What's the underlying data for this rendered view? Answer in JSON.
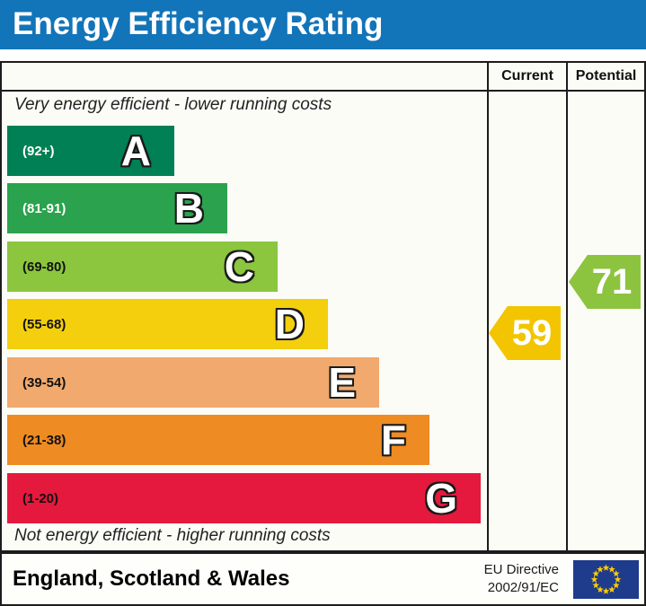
{
  "title": "Energy Efficiency Rating",
  "table": {
    "columns": {
      "current": "Current",
      "potential": "Potential"
    }
  },
  "notes": {
    "top": "Very energy efficient - lower running costs",
    "bottom": "Not energy efficient - higher running costs"
  },
  "bands": [
    {
      "letter": "A",
      "range": "(92+)",
      "color": "#008054",
      "label_color": "#ffffff"
    },
    {
      "letter": "B",
      "range": "(81-91)",
      "color": "#2ba24d",
      "label_color": "#ffffff"
    },
    {
      "letter": "C",
      "range": "(69-80)",
      "color": "#8bc63e",
      "label_color": "#111111"
    },
    {
      "letter": "D",
      "range": "(55-68)",
      "color": "#f4cf0d",
      "label_color": "#111111"
    },
    {
      "letter": "E",
      "range": "(39-54)",
      "color": "#f1a96d",
      "label_color": "#111111"
    },
    {
      "letter": "F",
      "range": "(21-38)",
      "color": "#ee8b23",
      "label_color": "#111111"
    },
    {
      "letter": "G",
      "range": "(1-20)",
      "color": "#e5193d",
      "label_color": "#111111"
    }
  ],
  "ratings": {
    "current": {
      "value": "59",
      "band": "D",
      "color": "#f2c500"
    },
    "potential": {
      "value": "71",
      "band": "C",
      "color": "#8cc43f"
    }
  },
  "footer": {
    "region": "England, Scotland & Wales",
    "directive_line1": "EU Directive",
    "directive_line2": "2002/91/EC"
  },
  "flag": {
    "background": "#1f3b8c",
    "star_color": "#ffcc00",
    "stars": 12
  },
  "colors": {
    "banner": "#1274b9",
    "border": "#1c1c1c",
    "chart_bg": "#fcfcf7"
  },
  "chart_data": {
    "type": "bar",
    "title": "Energy Efficiency Rating",
    "categories": [
      "A",
      "B",
      "C",
      "D",
      "E",
      "F",
      "G"
    ],
    "band_ranges": [
      "92+",
      "81-91",
      "69-80",
      "55-68",
      "39-54",
      "21-38",
      "1-20"
    ],
    "band_colors": [
      "#008054",
      "#2ba24d",
      "#8bc63e",
      "#f4cf0d",
      "#f1a96d",
      "#ee8b23",
      "#e5193d"
    ],
    "series": [
      {
        "name": "Current",
        "value": 59,
        "band": "D",
        "color": "#f2c500"
      },
      {
        "name": "Potential",
        "value": 71,
        "band": "C",
        "color": "#8cc43f"
      }
    ],
    "value_range": [
      1,
      100
    ],
    "annotations": [
      "Very energy efficient - lower running costs",
      "Not energy efficient - higher running costs"
    ],
    "legend_position": "none",
    "grid": false
  }
}
